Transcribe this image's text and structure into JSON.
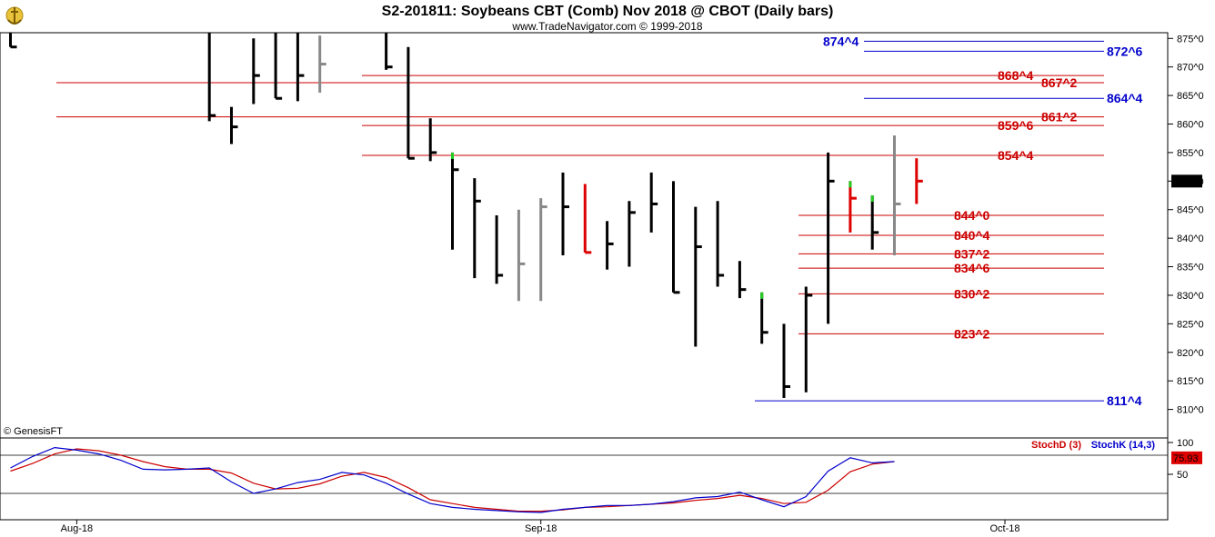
{
  "chart_data": {
    "type": "bar",
    "subtype": "ohlc",
    "title": "S2-201811:  Soybeans CBT (Comb) Nov 2018 @ CBOT  (Daily bars)",
    "subtitle": "www.TradeNavigator.com © 1999-2018",
    "credit": "© GenesisFT",
    "price_axis": {
      "ylim": [
        805,
        876
      ],
      "ticks": [
        "875^0",
        "870^0",
        "865^0",
        "860^0",
        "855^0",
        "850^0",
        "845^0",
        "840^0",
        "835^0",
        "830^0",
        "825^0",
        "820^0",
        "815^0",
        "810^0"
      ],
      "tick_values": [
        875,
        870,
        865,
        860,
        855,
        850,
        845,
        840,
        835,
        830,
        825,
        820,
        815,
        810
      ],
      "current_label": "850^0",
      "current_value": 850.0
    },
    "x_axis": {
      "labels": [
        "Aug-18",
        "Sep-18",
        "Oct-18"
      ],
      "label_bar_index": [
        3,
        24,
        45
      ]
    },
    "bars": [
      {
        "i": 0,
        "h": 880,
        "l": 873.5,
        "c": 873.5,
        "color": "black"
      },
      {
        "i": 9,
        "h": 877,
        "l": 860.5,
        "c": 861.5,
        "color": "black"
      },
      {
        "i": 10,
        "h": 863,
        "l": 856.5,
        "c": 859.5,
        "color": "black"
      },
      {
        "i": 11,
        "h": 875,
        "l": 863.5,
        "c": 868.5,
        "color": "black"
      },
      {
        "i": 12,
        "h": 879,
        "l": 864.5,
        "c": 864.5,
        "color": "black"
      },
      {
        "i": 13,
        "h": 876,
        "l": 864,
        "c": 868.5,
        "color": "black"
      },
      {
        "i": 14,
        "h": 875.5,
        "l": 865.5,
        "c": 870.5,
        "color": "gray"
      },
      {
        "i": 17,
        "h": 877,
        "l": 869.5,
        "c": 870,
        "color": "black"
      },
      {
        "i": 18,
        "h": 873.5,
        "l": 854,
        "c": 854,
        "color": "black"
      },
      {
        "i": 19,
        "h": 861,
        "l": 853.5,
        "c": 855,
        "color": "black"
      },
      {
        "i": 20,
        "h": 855,
        "l": 838,
        "c": 852,
        "color": "black"
      },
      {
        "i": 21,
        "h": 850.5,
        "l": 833,
        "c": 846.5,
        "color": "black"
      },
      {
        "i": 22,
        "h": 844,
        "l": 832,
        "c": 833.5,
        "color": "black"
      },
      {
        "i": 23,
        "h": 845,
        "l": 829,
        "c": 835.5,
        "color": "gray"
      },
      {
        "i": 24,
        "h": 847,
        "l": 829,
        "c": 845.5,
        "color": "gray"
      },
      {
        "i": 25,
        "h": 851.5,
        "l": 837,
        "c": 845.5,
        "color": "black"
      },
      {
        "i": 26,
        "h": 849.5,
        "l": 837.5,
        "c": 837.5,
        "color": "red"
      },
      {
        "i": 27,
        "h": 843,
        "l": 834.5,
        "c": 839,
        "color": "black"
      },
      {
        "i": 28,
        "h": 846.5,
        "l": 835,
        "c": 844.5,
        "color": "black"
      },
      {
        "i": 29,
        "h": 851.5,
        "l": 841,
        "c": 846,
        "color": "black"
      },
      {
        "i": 30,
        "h": 850,
        "l": 830.5,
        "c": 830.5,
        "color": "black"
      },
      {
        "i": 31,
        "h": 845.5,
        "l": 821,
        "c": 838.5,
        "color": "black"
      },
      {
        "i": 32,
        "h": 846.5,
        "l": 831.5,
        "c": 833.5,
        "color": "black"
      },
      {
        "i": 33,
        "h": 836,
        "l": 829.5,
        "c": 831,
        "color": "black"
      },
      {
        "i": 34,
        "h": 830.5,
        "l": 821.5,
        "c": 823.5,
        "color": "black"
      },
      {
        "i": 35,
        "h": 825,
        "l": 812,
        "c": 814,
        "color": "black"
      },
      {
        "i": 36,
        "h": 831.5,
        "l": 813,
        "c": 830,
        "color": "black"
      },
      {
        "i": 37,
        "h": 855,
        "l": 825,
        "c": 850,
        "color": "black"
      },
      {
        "i": 38,
        "h": 850,
        "l": 841,
        "c": 847,
        "color": "red"
      },
      {
        "i": 39,
        "h": 847.5,
        "l": 838,
        "c": 841,
        "color": "black"
      },
      {
        "i": 40,
        "h": 858,
        "l": 837,
        "c": 846,
        "color": "gray"
      },
      {
        "i": 41,
        "h": 854,
        "l": 846,
        "c": 850,
        "color": "red"
      }
    ],
    "levels": [
      {
        "label": "874^4",
        "value": 874.5,
        "color": "#0000cc",
        "side": "left-of-axis"
      },
      {
        "label": "872^6",
        "value": 872.75,
        "color": "#0000cc",
        "side": "axis"
      },
      {
        "label": "868^4",
        "value": 868.5,
        "color": "#cc0000",
        "side": "left-of-axis"
      },
      {
        "label": "867^2",
        "value": 867.25,
        "color": "#cc0000",
        "side": "axis"
      },
      {
        "label": "864^4",
        "value": 864.5,
        "color": "#0000cc",
        "side": "axis"
      },
      {
        "label": "861^2",
        "value": 861.25,
        "color": "#cc0000",
        "side": "axis"
      },
      {
        "label": "859^6",
        "value": 859.75,
        "color": "#cc0000",
        "side": "left-of-axis"
      },
      {
        "label": "854^4",
        "value": 854.5,
        "color": "#cc0000",
        "side": "left-of-axis"
      },
      {
        "label": "844^0",
        "value": 844.0,
        "color": "#cc0000",
        "side": "left-of-axis"
      },
      {
        "label": "840^4",
        "value": 840.5,
        "color": "#cc0000",
        "side": "left-of-axis"
      },
      {
        "label": "837^2",
        "value": 837.25,
        "color": "#cc0000",
        "side": "left-of-axis"
      },
      {
        "label": "834^6",
        "value": 834.75,
        "color": "#cc0000",
        "side": "left-of-axis"
      },
      {
        "label": "830^2",
        "value": 830.25,
        "color": "#cc0000",
        "side": "left-of-axis"
      },
      {
        "label": "823^2",
        "value": 823.25,
        "color": "#cc0000",
        "side": "left-of-axis"
      },
      {
        "label": "811^4",
        "value": 811.5,
        "color": "#0000cc",
        "side": "axis"
      }
    ],
    "stochastic": {
      "series": [
        {
          "name": "StochD (3)",
          "color": "#cc0000"
        },
        {
          "name": "StochK (14,3)",
          "color": "#0000cc"
        }
      ],
      "ylim": [
        0,
        100
      ],
      "ticks": [
        "100",
        "50"
      ],
      "tick_values": [
        100,
        50
      ],
      "ref_lines": [
        80,
        20
      ],
      "current_label": "75.93",
      "current_value": 75.93,
      "k": [
        60,
        78,
        92,
        88,
        82,
        72,
        58,
        57,
        58,
        60,
        38,
        20,
        27,
        37,
        42,
        53,
        49,
        36,
        19,
        4,
        -2,
        -5,
        -7,
        -9,
        -10,
        -5,
        -2,
        1,
        1,
        3,
        7,
        13,
        15,
        22,
        10,
        -1,
        15,
        55,
        76,
        68,
        70
      ],
      "d": [
        55,
        67,
        82,
        90,
        87,
        80,
        70,
        62,
        58,
        58,
        52,
        36,
        27,
        28,
        35,
        47,
        53,
        45,
        29,
        10,
        4,
        -2,
        -5,
        -8,
        -8,
        -6,
        -2,
        -1,
        1,
        3,
        5,
        9,
        12,
        17,
        12,
        4,
        6,
        25,
        54,
        66,
        70
      ]
    }
  }
}
